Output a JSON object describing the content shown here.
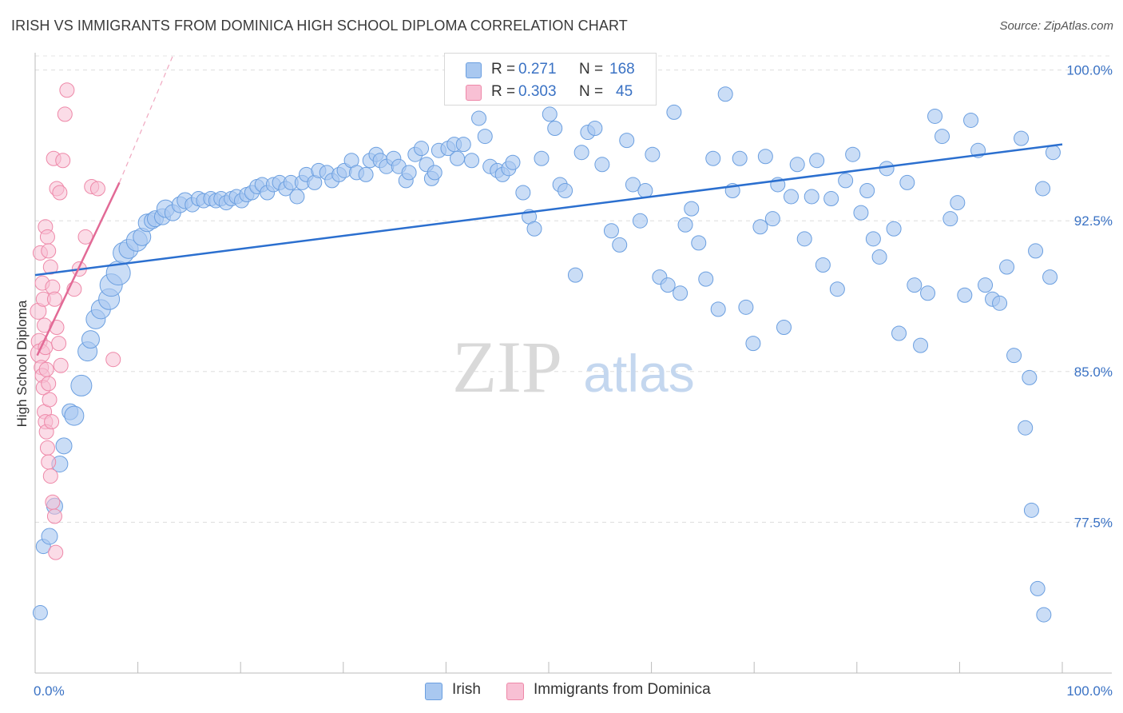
{
  "title": "IRISH VS IMMIGRANTS FROM DOMINICA HIGH SCHOOL DIPLOMA CORRELATION CHART",
  "source": "Source: ZipAtlas.com",
  "watermark": {
    "zip": "ZIP",
    "atlas": "atlas"
  },
  "legend_top": {
    "irish": {
      "r_label": "R =",
      "r_value": "0.271",
      "n_label": "N =",
      "n_value": "168"
    },
    "dominica": {
      "r_label": "R =",
      "r_value": "0.303",
      "n_label": "N =",
      "n_value": "45"
    }
  },
  "legend_bottom": {
    "irish": "Irish",
    "dominica": "Immigrants from Dominica"
  },
  "colors": {
    "irish_fill": "#a9c8f0",
    "irish_stroke": "#6b9fe0",
    "irish_line": "#2b6fcf",
    "dominica_fill": "#f8c0d4",
    "dominica_stroke": "#ee88a8",
    "dominica_line": "#e26a96",
    "tick_text": "#3a72c4",
    "grid": "#dddddd"
  },
  "chart_data": {
    "type": "scatter",
    "title": "IRISH VS IMMIGRANTS FROM DOMINICA HIGH SCHOOL DIPLOMA CORRELATION CHART",
    "ylabel": "High School Diploma",
    "xlim": [
      0,
      100
    ],
    "ylim": [
      70,
      100.7
    ],
    "x_ticks": [
      "0.0%",
      "100.0%"
    ],
    "y_ticks": [
      {
        "value": 77.5,
        "label": "77.5%"
      },
      {
        "value": 85.0,
        "label": "85.0%"
      },
      {
        "value": 92.5,
        "label": "92.5%"
      },
      {
        "value": 100.0,
        "label": "100.0%"
      }
    ],
    "grid": true,
    "legend_position": "top-center",
    "series": [
      {
        "name": "Irish",
        "trend": [
          [
            0,
            89.8
          ],
          [
            100,
            96.3
          ]
        ],
        "points": [
          [
            0.5,
            73.0,
            9
          ],
          [
            0.8,
            76.3,
            9
          ],
          [
            1.4,
            76.8,
            10
          ],
          [
            1.9,
            78.3,
            10
          ],
          [
            2.4,
            80.4,
            10
          ],
          [
            2.8,
            81.3,
            10
          ],
          [
            3.4,
            83.0,
            10
          ],
          [
            3.8,
            82.8,
            12
          ],
          [
            4.5,
            84.3,
            13
          ],
          [
            5.1,
            86.0,
            12
          ],
          [
            5.4,
            86.6,
            11
          ],
          [
            5.9,
            87.6,
            12
          ],
          [
            6.4,
            88.1,
            12
          ],
          [
            7.2,
            88.6,
            13
          ],
          [
            7.4,
            89.3,
            14
          ],
          [
            8.1,
            89.9,
            15
          ],
          [
            8.6,
            90.9,
            13
          ],
          [
            9.1,
            91.1,
            12
          ],
          [
            9.9,
            91.5,
            13
          ],
          [
            10.4,
            91.7,
            11
          ],
          [
            10.9,
            92.4,
            11
          ],
          [
            11.4,
            92.5,
            10
          ],
          [
            11.7,
            92.6,
            10
          ],
          [
            12.4,
            92.7,
            10
          ],
          [
            12.7,
            93.1,
            11
          ],
          [
            13.4,
            92.9,
            10
          ],
          [
            14.1,
            93.3,
            10
          ],
          [
            14.6,
            93.5,
            10
          ],
          [
            15.3,
            93.3,
            9
          ],
          [
            15.9,
            93.6,
            9
          ],
          [
            16.4,
            93.5,
            9
          ],
          [
            17.1,
            93.6,
            9
          ],
          [
            17.6,
            93.5,
            9
          ],
          [
            18.1,
            93.6,
            9
          ],
          [
            18.6,
            93.4,
            9
          ],
          [
            19.1,
            93.6,
            9
          ],
          [
            19.6,
            93.7,
            9
          ],
          [
            20.1,
            93.5,
            9
          ],
          [
            20.6,
            93.8,
            9
          ],
          [
            21.1,
            93.9,
            9
          ],
          [
            21.6,
            94.2,
            9
          ],
          [
            22.1,
            94.3,
            9
          ],
          [
            22.6,
            93.9,
            9
          ],
          [
            23.2,
            94.3,
            9
          ],
          [
            23.8,
            94.4,
            9
          ],
          [
            24.4,
            94.1,
            9
          ],
          [
            24.9,
            94.4,
            9
          ],
          [
            25.5,
            93.7,
            9
          ],
          [
            26.0,
            94.4,
            9
          ],
          [
            26.4,
            94.8,
            9
          ],
          [
            27.2,
            94.4,
            9
          ],
          [
            27.6,
            95.0,
            9
          ],
          [
            28.4,
            94.9,
            9
          ],
          [
            28.9,
            94.5,
            9
          ],
          [
            29.6,
            94.8,
            9
          ],
          [
            30.1,
            95.0,
            9
          ],
          [
            30.8,
            95.5,
            9
          ],
          [
            31.3,
            94.9,
            9
          ],
          [
            32.2,
            94.8,
            9
          ],
          [
            32.6,
            95.5,
            9
          ],
          [
            33.2,
            95.8,
            9
          ],
          [
            33.6,
            95.5,
            9
          ],
          [
            34.2,
            95.2,
            9
          ],
          [
            34.9,
            95.6,
            9
          ],
          [
            35.4,
            95.2,
            9
          ],
          [
            36.1,
            94.5,
            9
          ],
          [
            36.4,
            94.9,
            9
          ],
          [
            37.0,
            95.8,
            9
          ],
          [
            37.6,
            96.1,
            9
          ],
          [
            38.1,
            95.3,
            9
          ],
          [
            38.6,
            94.6,
            9
          ],
          [
            38.9,
            94.9,
            9
          ],
          [
            39.3,
            96.0,
            9
          ],
          [
            40.2,
            96.1,
            9
          ],
          [
            40.8,
            96.3,
            9
          ],
          [
            41.1,
            95.6,
            9
          ],
          [
            41.7,
            96.3,
            9
          ],
          [
            42.5,
            95.5,
            9
          ],
          [
            43.2,
            97.6,
            9
          ],
          [
            43.8,
            96.7,
            9
          ],
          [
            44.3,
            95.2,
            9
          ],
          [
            45.0,
            95.0,
            9
          ],
          [
            45.5,
            94.8,
            9
          ],
          [
            46.1,
            95.1,
            9
          ],
          [
            46.5,
            95.4,
            9
          ],
          [
            47.5,
            93.9,
            9
          ],
          [
            48.1,
            92.7,
            9
          ],
          [
            48.6,
            92.1,
            9
          ],
          [
            49.3,
            95.6,
            9
          ],
          [
            50.1,
            97.8,
            9
          ],
          [
            50.6,
            97.1,
            9
          ],
          [
            51.1,
            94.3,
            9
          ],
          [
            51.6,
            94.0,
            9
          ],
          [
            52.6,
            89.8,
            9
          ],
          [
            53.2,
            95.9,
            9
          ],
          [
            53.8,
            96.9,
            9
          ],
          [
            54.5,
            97.1,
            9
          ],
          [
            55.2,
            95.3,
            9
          ],
          [
            56.1,
            92.0,
            9
          ],
          [
            56.9,
            91.3,
            9
          ],
          [
            57.6,
            96.5,
            9
          ],
          [
            58.2,
            94.3,
            9
          ],
          [
            58.9,
            92.5,
            9
          ],
          [
            59.4,
            94.0,
            9
          ],
          [
            60.1,
            95.8,
            9
          ],
          [
            60.8,
            89.7,
            9
          ],
          [
            61.6,
            89.3,
            9
          ],
          [
            62.2,
            97.9,
            9
          ],
          [
            62.8,
            88.9,
            9
          ],
          [
            63.3,
            92.3,
            9
          ],
          [
            63.9,
            93.1,
            9
          ],
          [
            64.6,
            91.4,
            9
          ],
          [
            65.3,
            89.6,
            9
          ],
          [
            66.0,
            95.6,
            9
          ],
          [
            66.5,
            88.1,
            9
          ],
          [
            67.2,
            98.8,
            9
          ],
          [
            67.9,
            94.0,
            9
          ],
          [
            68.6,
            95.6,
            9
          ],
          [
            69.2,
            88.2,
            9
          ],
          [
            69.9,
            86.4,
            9
          ],
          [
            70.6,
            92.2,
            9
          ],
          [
            71.1,
            95.7,
            9
          ],
          [
            71.8,
            92.6,
            9
          ],
          [
            72.3,
            94.3,
            9
          ],
          [
            72.9,
            87.2,
            9
          ],
          [
            73.6,
            93.7,
            9
          ],
          [
            74.2,
            95.3,
            9
          ],
          [
            74.9,
            91.6,
            9
          ],
          [
            75.6,
            93.7,
            9
          ],
          [
            76.1,
            95.5,
            9
          ],
          [
            76.7,
            90.3,
            9
          ],
          [
            77.5,
            93.6,
            9
          ],
          [
            78.1,
            89.1,
            9
          ],
          [
            78.9,
            94.5,
            9
          ],
          [
            79.6,
            95.8,
            9
          ],
          [
            80.4,
            92.9,
            9
          ],
          [
            81.0,
            94.0,
            9
          ],
          [
            81.6,
            91.6,
            9
          ],
          [
            82.2,
            90.7,
            9
          ],
          [
            82.9,
            95.1,
            9
          ],
          [
            83.6,
            92.1,
            9
          ],
          [
            84.1,
            86.9,
            9
          ],
          [
            84.9,
            94.4,
            9
          ],
          [
            85.6,
            89.3,
            9
          ],
          [
            86.2,
            86.3,
            9
          ],
          [
            86.9,
            88.9,
            9
          ],
          [
            87.6,
            97.7,
            9
          ],
          [
            88.3,
            96.7,
            9
          ],
          [
            89.1,
            92.6,
            9
          ],
          [
            89.8,
            93.4,
            9
          ],
          [
            90.5,
            88.8,
            9
          ],
          [
            91.1,
            97.5,
            9
          ],
          [
            91.8,
            96.0,
            9
          ],
          [
            92.5,
            89.3,
            9
          ],
          [
            93.2,
            88.6,
            9
          ],
          [
            93.9,
            88.4,
            9
          ],
          [
            94.6,
            90.2,
            9
          ],
          [
            95.3,
            85.8,
            9
          ],
          [
            96.0,
            96.6,
            9
          ],
          [
            96.8,
            84.7,
            9
          ],
          [
            97.4,
            91.0,
            9
          ],
          [
            98.1,
            94.1,
            9
          ],
          [
            98.8,
            89.7,
            9
          ],
          [
            99.1,
            95.9,
            9
          ],
          [
            96.4,
            82.2,
            9
          ],
          [
            97.0,
            78.1,
            9
          ],
          [
            97.6,
            74.2,
            9
          ],
          [
            98.2,
            72.9,
            9
          ]
        ]
      },
      {
        "name": "Immigrants from Dominica",
        "trend": [
          [
            0.2,
            85.8
          ],
          [
            8.2,
            94.4
          ]
        ],
        "trend_dashed_to": [
          13.4,
          100.7
        ],
        "points": [
          [
            0.3,
            88.0,
            10
          ],
          [
            0.4,
            86.5,
            10
          ],
          [
            0.5,
            85.9,
            12
          ],
          [
            0.6,
            85.2,
            9
          ],
          [
            0.7,
            84.8,
            9
          ],
          [
            0.8,
            84.2,
            9
          ],
          [
            0.9,
            83.0,
            9
          ],
          [
            1.0,
            82.5,
            9
          ],
          [
            1.1,
            82.0,
            9
          ],
          [
            1.2,
            81.2,
            9
          ],
          [
            1.3,
            80.5,
            9
          ],
          [
            1.5,
            79.8,
            9
          ],
          [
            1.7,
            78.5,
            9
          ],
          [
            1.9,
            77.8,
            9
          ],
          [
            2.0,
            76.0,
            9
          ],
          [
            0.5,
            90.9,
            9
          ],
          [
            0.7,
            89.4,
            9
          ],
          [
            0.8,
            88.6,
            9
          ],
          [
            0.9,
            87.3,
            9
          ],
          [
            1.0,
            86.2,
            9
          ],
          [
            1.1,
            85.1,
            9
          ],
          [
            1.3,
            84.4,
            9
          ],
          [
            1.4,
            83.6,
            9
          ],
          [
            1.6,
            82.5,
            9
          ],
          [
            1.0,
            92.2,
            9
          ],
          [
            1.2,
            91.7,
            9
          ],
          [
            1.3,
            91.0,
            9
          ],
          [
            1.5,
            90.2,
            9
          ],
          [
            1.7,
            89.2,
            9
          ],
          [
            1.9,
            88.6,
            9
          ],
          [
            2.1,
            87.2,
            9
          ],
          [
            2.3,
            86.4,
            9
          ],
          [
            2.5,
            85.3,
            9
          ],
          [
            1.8,
            95.6,
            9
          ],
          [
            2.1,
            94.1,
            9
          ],
          [
            2.4,
            93.9,
            9
          ],
          [
            2.7,
            95.5,
            9
          ],
          [
            2.9,
            97.8,
            9
          ],
          [
            3.1,
            99.0,
            9
          ],
          [
            3.8,
            89.1,
            9
          ],
          [
            4.3,
            90.1,
            9
          ],
          [
            4.9,
            91.7,
            9
          ],
          [
            5.5,
            94.2,
            9
          ],
          [
            6.1,
            94.1,
            9
          ],
          [
            7.6,
            85.6,
            9
          ]
        ]
      }
    ]
  }
}
